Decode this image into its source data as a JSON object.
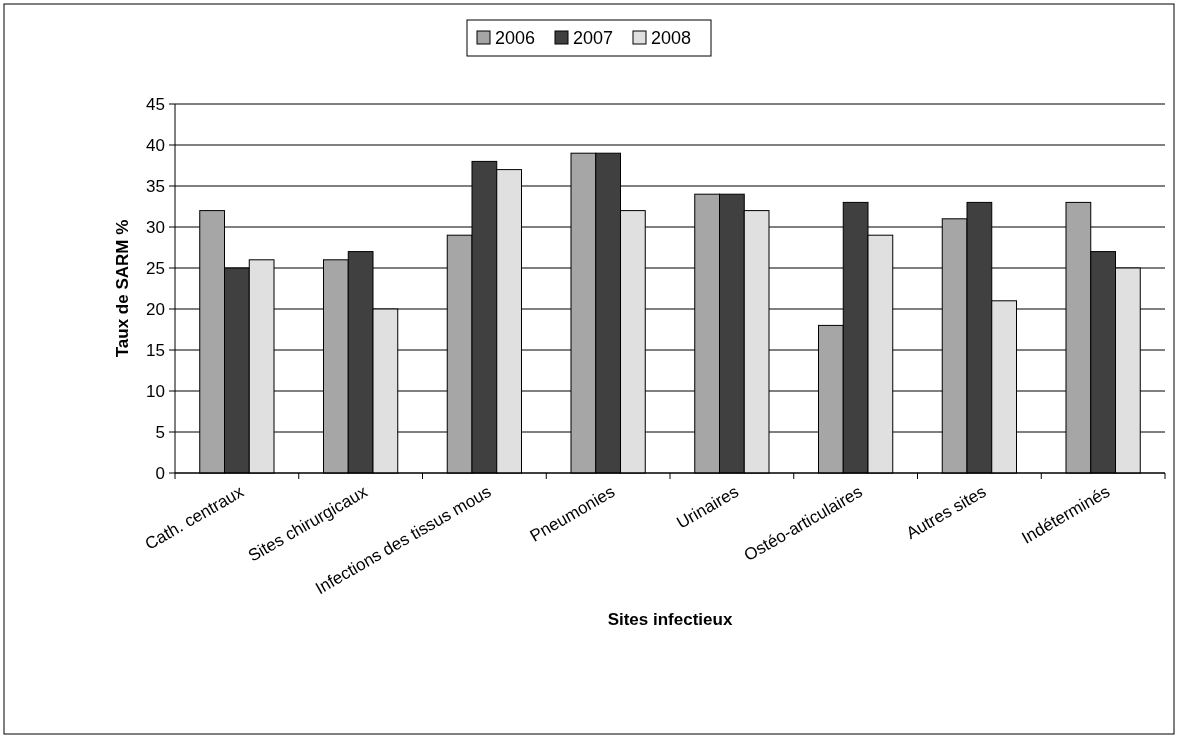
{
  "chart_data": {
    "type": "bar",
    "xlabel": "Sites infectieux",
    "ylabel": "Taux de SARM %",
    "categories": [
      "Cath. centraux",
      "Sites chirurgicaux",
      "Infections des tissus mous",
      "Pneumonies",
      "Urinaires",
      "Ostéo-articulaires",
      "Autres sites",
      "Indéterminés"
    ],
    "series": [
      {
        "name": "2006",
        "color": "#a6a6a6",
        "values": [
          32,
          26,
          29,
          39,
          34,
          18,
          31,
          33
        ]
      },
      {
        "name": "2007",
        "color": "#404040",
        "values": [
          25,
          27,
          38,
          39,
          34,
          33,
          33,
          27
        ]
      },
      {
        "name": "2008",
        "color": "#e0e0e0",
        "values": [
          26,
          20,
          37,
          32,
          32,
          29,
          21,
          25
        ]
      }
    ],
    "ylim": [
      0,
      45
    ],
    "yticks": [
      0,
      5,
      10,
      15,
      20,
      25,
      30,
      35,
      40,
      45
    ],
    "grid": "y",
    "legend": "top"
  }
}
